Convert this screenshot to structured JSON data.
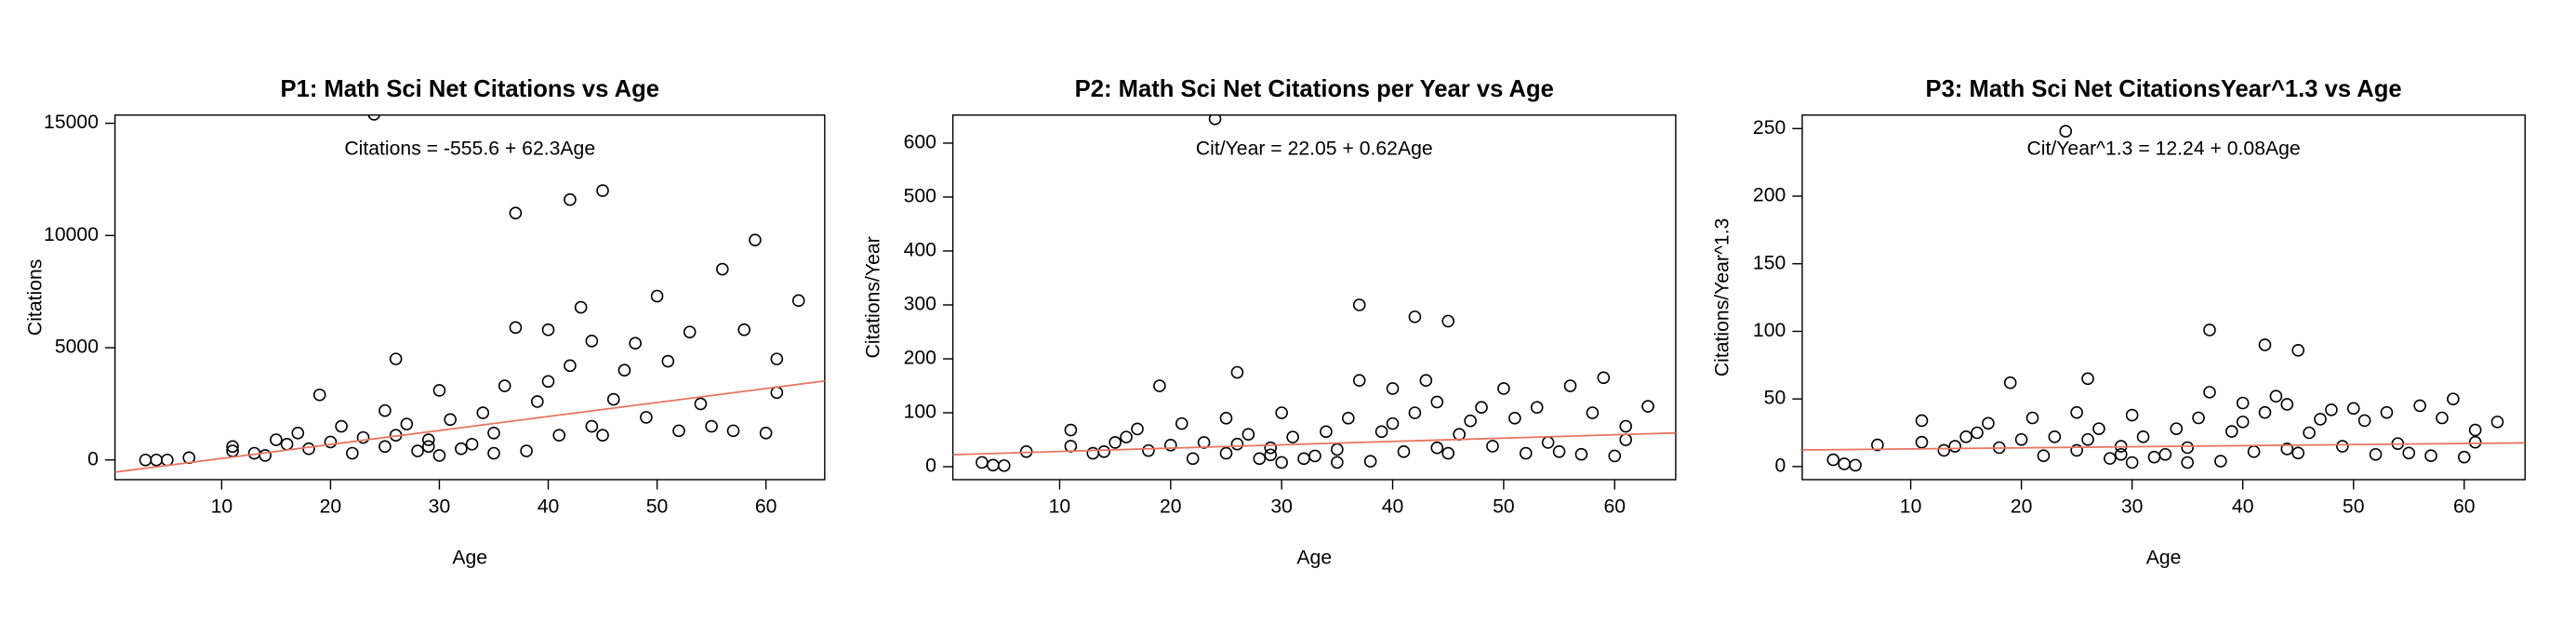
{
  "chart_data": [
    {
      "type": "scatter",
      "title": "P1: Math Sci Net Citations vs Age",
      "annotation": "Citations = -555.6 + 62.3Age",
      "x_label": "Age",
      "y_label": "Citations",
      "xlim": [
        0.2,
        65.4
      ],
      "ylim": [
        -878,
        15366
      ],
      "xticks": [
        10,
        20,
        30,
        40,
        50,
        60
      ],
      "yticks": [
        0,
        5000,
        10000,
        15000
      ],
      "point_color": "#000000",
      "trend": {
        "intercept": -555.6,
        "slope": 62.3,
        "color": "#e8735f"
      },
      "x": [
        24,
        37,
        42,
        45,
        59,
        56,
        50,
        43,
        37,
        40,
        63,
        26,
        19,
        3,
        4,
        5,
        7,
        11,
        11,
        13,
        14,
        15,
        16,
        17,
        18,
        20,
        21,
        22,
        23,
        25,
        25,
        27,
        28,
        29,
        30,
        30,
        31,
        33,
        34,
        35,
        36,
        38,
        39,
        40,
        41,
        42,
        44,
        44,
        46,
        47,
        48,
        49,
        51,
        52,
        53,
        54,
        55,
        57,
        58,
        60,
        61,
        61,
        32,
        26,
        35,
        45,
        29
      ],
      "values": [
        15400,
        11000,
        11600,
        12000,
        9800,
        8500,
        7300,
        6800,
        5900,
        5800,
        7100,
        4500,
        2900,
        0,
        0,
        0,
        100,
        600,
        400,
        300,
        200,
        900,
        700,
        1200,
        500,
        800,
        1500,
        300,
        1000,
        2200,
        600,
        1600,
        400,
        900,
        3100,
        200,
        1800,
        700,
        2100,
        1200,
        3300,
        400,
        2600,
        3500,
        1100,
        4200,
        5300,
        1500,
        2700,
        4000,
        5200,
        1900,
        4400,
        1300,
        5700,
        2500,
        1500,
        1300,
        5800,
        1200,
        3000,
        4500,
        500,
        1100,
        300,
        1100,
        600
      ]
    },
    {
      "type": "scatter",
      "title": "P2: Math Sci Net Citations per Year vs Age",
      "annotation": "Cit/Year = 22.05 + 0.62Age",
      "x_label": "Age",
      "y_label": "Citations/Year",
      "xlim": [
        0.38,
        65.5
      ],
      "ylim": [
        -24,
        652
      ],
      "xticks": [
        10,
        20,
        30,
        40,
        50,
        60
      ],
      "yticks": [
        0,
        100,
        200,
        300,
        400,
        500,
        600
      ],
      "point_color": "#000000",
      "trend": {
        "intercept": 22.05,
        "slope": 0.62,
        "color": "#e8735f"
      },
      "x": [
        24,
        37,
        42,
        45,
        59,
        56,
        50,
        43,
        37,
        40,
        63,
        26,
        19,
        3,
        4,
        5,
        7,
        11,
        11,
        13,
        14,
        15,
        16,
        17,
        18,
        20,
        21,
        22,
        23,
        25,
        25,
        27,
        28,
        29,
        30,
        30,
        31,
        33,
        34,
        35,
        36,
        38,
        39,
        40,
        41,
        42,
        44,
        44,
        46,
        47,
        48,
        49,
        51,
        52,
        53,
        54,
        55,
        57,
        58,
        60,
        61,
        61,
        32,
        26,
        35,
        45,
        29
      ],
      "values": [
        645,
        300,
        278,
        270,
        165,
        150,
        145,
        160,
        160,
        145,
        112,
        175,
        150,
        8,
        3,
        2,
        28,
        68,
        38,
        25,
        28,
        45,
        55,
        70,
        30,
        40,
        80,
        15,
        45,
        90,
        25,
        60,
        15,
        35,
        100,
        8,
        55,
        20,
        65,
        32,
        90,
        10,
        65,
        80,
        28,
        100,
        120,
        35,
        60,
        85,
        110,
        38,
        90,
        25,
        110,
        45,
        28,
        23,
        100,
        20,
        50,
        75,
        15,
        42,
        8,
        25,
        22
      ]
    },
    {
      "type": "scatter",
      "title": "P3: Math Sci Net CitationsYear^1.3 vs Age",
      "annotation": "Cit/Year^1.3 = 12.24 + 0.08Age",
      "x_label": "Age",
      "y_label": "Citations/Year^1.3",
      "xlim": [
        0.2,
        65.5
      ],
      "ylim": [
        -9.7,
        260
      ],
      "xticks": [
        10,
        20,
        30,
        40,
        50,
        60
      ],
      "yticks": [
        0,
        50,
        100,
        150,
        200,
        250
      ],
      "point_color": "#000000",
      "trend": {
        "intercept": 12.24,
        "slope": 0.08,
        "color": "#e8735f"
      },
      "x": [
        24,
        37,
        42,
        45,
        59,
        56,
        50,
        43,
        37,
        40,
        63,
        26,
        19,
        3,
        4,
        5,
        7,
        11,
        11,
        13,
        14,
        15,
        16,
        17,
        18,
        20,
        21,
        22,
        23,
        25,
        25,
        27,
        28,
        29,
        30,
        30,
        31,
        33,
        34,
        35,
        36,
        38,
        39,
        40,
        41,
        42,
        44,
        44,
        46,
        47,
        48,
        49,
        51,
        52,
        53,
        54,
        55,
        57,
        58,
        60,
        61,
        61,
        32,
        26,
        35,
        45,
        29
      ],
      "values": [
        248,
        101,
        90,
        86,
        50,
        45,
        43,
        52,
        55,
        47,
        33,
        65,
        62,
        5,
        2,
        1,
        16,
        34,
        18,
        12,
        15,
        22,
        25,
        32,
        14,
        20,
        36,
        8,
        22,
        40,
        12,
        28,
        6,
        15,
        38,
        3,
        22,
        9,
        28,
        14,
        36,
        4,
        26,
        33,
        11,
        40,
        46,
        13,
        25,
        35,
        42,
        15,
        34,
        9,
        40,
        17,
        10,
        8,
        36,
        7,
        18,
        27,
        7,
        20,
        3,
        10,
        9
      ]
    }
  ]
}
